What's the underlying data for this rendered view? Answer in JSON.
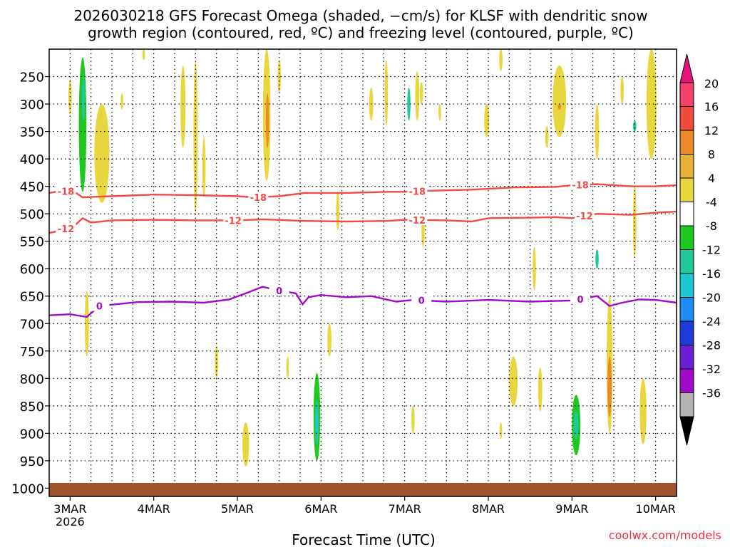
{
  "chart_data": {
    "type": "heatmap",
    "title_line1": "2026030218 GFS Forecast Omega (shaded, −cm/s) for KLSF with dendritic snow",
    "title_line2": "growth region (contoured, red, ºC) and freezing level (contoured, purple, ºC)",
    "xlabel": "Forecast Time (UTC)",
    "ylabel": "",
    "credit": "coolwx.com/models",
    "x_domain_days": [
      -0.25,
      7.25
    ],
    "x_ticks": [
      {
        "day": 0,
        "label": "3MAR",
        "sub": "2026"
      },
      {
        "day": 1,
        "label": "4MAR",
        "sub": ""
      },
      {
        "day": 2,
        "label": "5MAR",
        "sub": ""
      },
      {
        "day": 3,
        "label": "6MAR",
        "sub": ""
      },
      {
        "day": 4,
        "label": "7MAR",
        "sub": ""
      },
      {
        "day": 5,
        "label": "8MAR",
        "sub": ""
      },
      {
        "day": 6,
        "label": "9MAR",
        "sub": ""
      },
      {
        "day": 7,
        "label": "10MAR",
        "sub": ""
      }
    ],
    "y_domain_hpa": [
      200,
      1015
    ],
    "y_ticks": [
      250,
      300,
      350,
      400,
      450,
      500,
      550,
      600,
      650,
      700,
      750,
      800,
      850,
      900,
      950,
      1000
    ],
    "colorbar": {
      "labels": [
        "20",
        "16",
        "12",
        "8",
        "4",
        "-4",
        "-8",
        "-12",
        "-16",
        "-20",
        "-24",
        "-28",
        "-32",
        "-36"
      ],
      "colors": [
        "#f5406b",
        "#f04a3c",
        "#ec8a2a",
        "#e8b13a",
        "#e8d63e",
        "#ffffff",
        "#1ec81e",
        "#22c89a",
        "#1ec8d2",
        "#1e8cf0",
        "#1e3cdc",
        "#6a1ed6",
        "#a00ac8",
        "#b4b4b4"
      ],
      "top_arrow_color": "#e6147a",
      "bottom_arrow_color": "#000000"
    },
    "contours": [
      {
        "name": "-18C",
        "color": "#f04a46",
        "label": "-18",
        "points": [
          [
            -0.25,
            462
          ],
          [
            -0.1,
            458
          ],
          [
            0.05,
            460
          ],
          [
            0.15,
            470
          ],
          [
            0.5,
            468
          ],
          [
            1.0,
            465
          ],
          [
            1.5,
            466
          ],
          [
            2.0,
            468
          ],
          [
            2.2,
            470
          ],
          [
            2.5,
            468
          ],
          [
            2.8,
            462
          ],
          [
            3.3,
            462
          ],
          [
            3.8,
            460
          ],
          [
            4.0,
            460
          ],
          [
            4.3,
            458
          ],
          [
            4.8,
            456
          ],
          [
            5.3,
            452
          ],
          [
            5.8,
            451
          ],
          [
            6.0,
            448
          ],
          [
            6.3,
            446
          ],
          [
            6.7,
            450
          ],
          [
            7.0,
            450
          ],
          [
            7.25,
            448
          ]
        ],
        "labels_at": [
          -0.05,
          2.25,
          4.15,
          6.1
        ]
      },
      {
        "name": "-12C",
        "color": "#f04a46",
        "label": "-12",
        "points": [
          [
            -0.25,
            535
          ],
          [
            -0.1,
            530
          ],
          [
            0.05,
            522
          ],
          [
            0.15,
            508
          ],
          [
            0.25,
            516
          ],
          [
            0.5,
            512
          ],
          [
            1.0,
            511
          ],
          [
            1.5,
            512
          ],
          [
            2.0,
            512
          ],
          [
            2.3,
            510
          ],
          [
            2.8,
            513
          ],
          [
            3.3,
            514
          ],
          [
            3.8,
            513
          ],
          [
            4.0,
            511
          ],
          [
            4.5,
            512
          ],
          [
            4.8,
            514
          ],
          [
            5.0,
            508
          ],
          [
            5.5,
            507
          ],
          [
            5.8,
            506
          ],
          [
            6.0,
            508
          ],
          [
            6.3,
            500
          ],
          [
            6.7,
            502
          ],
          [
            7.0,
            498
          ],
          [
            7.25,
            496
          ]
        ],
        "labels_at": [
          -0.05,
          1.95,
          4.15,
          6.15
        ]
      },
      {
        "name": "freezing level 0C",
        "color": "#a00ac8",
        "label": "0",
        "points": [
          [
            -0.25,
            685
          ],
          [
            0.0,
            683
          ],
          [
            0.2,
            688
          ],
          [
            0.35,
            668
          ],
          [
            0.8,
            661
          ],
          [
            1.2,
            660
          ],
          [
            1.6,
            662
          ],
          [
            1.9,
            656
          ],
          [
            2.1,
            645
          ],
          [
            2.3,
            633
          ],
          [
            2.5,
            640
          ],
          [
            2.7,
            645
          ],
          [
            2.78,
            665
          ],
          [
            2.85,
            652
          ],
          [
            3.0,
            648
          ],
          [
            3.3,
            652
          ],
          [
            3.6,
            650
          ],
          [
            3.9,
            660
          ],
          [
            4.1,
            657
          ],
          [
            4.5,
            660
          ],
          [
            5.0,
            657
          ],
          [
            5.5,
            660
          ],
          [
            6.0,
            658
          ],
          [
            6.3,
            650
          ],
          [
            6.45,
            668
          ],
          [
            6.6,
            662
          ],
          [
            6.8,
            656
          ],
          [
            7.0,
            657
          ],
          [
            7.25,
            662
          ]
        ],
        "labels_at": [
          0.35,
          2.5,
          4.2,
          6.1
        ]
      }
    ],
    "shaded_regions": [
      {
        "day": 0.0,
        "p_top": 255,
        "p_bot": 320,
        "w": 0.04,
        "bin": "4"
      },
      {
        "day": 0.05,
        "p_top": 200,
        "p_bot": 700,
        "w": 0.06,
        "bin": "-4"
      },
      {
        "day": 0.15,
        "p_top": 215,
        "p_bot": 460,
        "w": 0.09,
        "bin": "-8"
      },
      {
        "day": 0.16,
        "p_top": 250,
        "p_bot": 330,
        "w": 0.04,
        "bin": "-12"
      },
      {
        "day": 0.38,
        "p_top": 300,
        "p_bot": 480,
        "w": 0.18,
        "bin": "4"
      },
      {
        "day": 0.62,
        "p_top": 280,
        "p_bot": 310,
        "w": 0.03,
        "bin": "4"
      },
      {
        "day": 0.2,
        "p_top": 640,
        "p_bot": 760,
        "w": 0.05,
        "bin": "4"
      },
      {
        "day": -0.05,
        "p_top": 820,
        "p_bot": 950,
        "w": 0.06,
        "bin": "-4"
      },
      {
        "day": 0.12,
        "p_top": 880,
        "p_bot": 920,
        "w": 0.03,
        "bin": "-4"
      },
      {
        "day": 0.88,
        "p_top": 200,
        "p_bot": 220,
        "w": 0.03,
        "bin": "4"
      },
      {
        "day": 1.35,
        "p_top": 230,
        "p_bot": 380,
        "w": 0.06,
        "bin": "4"
      },
      {
        "day": 1.2,
        "p_top": 330,
        "p_bot": 420,
        "w": 0.05,
        "bin": "-4"
      },
      {
        "day": 1.5,
        "p_top": 220,
        "p_bot": 500,
        "w": 0.05,
        "bin": "4"
      },
      {
        "day": 1.6,
        "p_top": 360,
        "p_bot": 470,
        "w": 0.04,
        "bin": "4"
      },
      {
        "day": 1.45,
        "p_top": 690,
        "p_bot": 760,
        "w": 0.04,
        "bin": "-4"
      },
      {
        "day": 1.75,
        "p_top": 740,
        "p_bot": 800,
        "w": 0.04,
        "bin": "4"
      },
      {
        "day": 2.05,
        "p_top": 230,
        "p_bot": 330,
        "w": 0.04,
        "bin": "-4"
      },
      {
        "day": 2.1,
        "p_top": 880,
        "p_bot": 960,
        "w": 0.08,
        "bin": "4"
      },
      {
        "day": 2.35,
        "p_top": 200,
        "p_bot": 440,
        "w": 0.09,
        "bin": "4"
      },
      {
        "day": 2.36,
        "p_top": 280,
        "p_bot": 380,
        "w": 0.04,
        "bin": "12"
      },
      {
        "day": 2.28,
        "p_top": 420,
        "p_bot": 620,
        "w": 0.09,
        "bin": "-4"
      },
      {
        "day": 2.5,
        "p_top": 220,
        "p_bot": 280,
        "w": 0.04,
        "bin": "4"
      },
      {
        "day": 2.6,
        "p_top": 760,
        "p_bot": 800,
        "w": 0.03,
        "bin": "4"
      },
      {
        "day": 2.75,
        "p_top": 780,
        "p_bot": 860,
        "w": 0.05,
        "bin": "-4"
      },
      {
        "day": 2.85,
        "p_top": 300,
        "p_bot": 340,
        "w": 0.04,
        "bin": "-4"
      },
      {
        "day": 2.95,
        "p_top": 790,
        "p_bot": 950,
        "w": 0.08,
        "bin": "-8"
      },
      {
        "day": 2.95,
        "p_top": 840,
        "p_bot": 920,
        "w": 0.05,
        "bin": "-12"
      },
      {
        "day": 2.95,
        "p_top": 860,
        "p_bot": 900,
        "w": 0.03,
        "bin": "-16"
      },
      {
        "day": 3.1,
        "p_top": 700,
        "p_bot": 760,
        "w": 0.05,
        "bin": "4"
      },
      {
        "day": 3.15,
        "p_top": 850,
        "p_bot": 950,
        "w": 0.05,
        "bin": "-4"
      },
      {
        "day": 3.2,
        "p_top": 460,
        "p_bot": 530,
        "w": 0.04,
        "bin": "4"
      },
      {
        "day": 3.6,
        "p_top": 270,
        "p_bot": 330,
        "w": 0.05,
        "bin": "4"
      },
      {
        "day": 3.78,
        "p_top": 220,
        "p_bot": 340,
        "w": 0.04,
        "bin": "4"
      },
      {
        "day": 4.05,
        "p_top": 265,
        "p_bot": 960,
        "w": 0.09,
        "bin": "-4"
      },
      {
        "day": 4.05,
        "p_top": 270,
        "p_bot": 330,
        "w": 0.04,
        "bin": "-12"
      },
      {
        "day": 4.15,
        "p_top": 240,
        "p_bot": 330,
        "w": 0.05,
        "bin": "4"
      },
      {
        "day": 4.2,
        "p_top": 260,
        "p_bot": 300,
        "w": 0.04,
        "bin": "4"
      },
      {
        "day": 4.42,
        "p_top": 300,
        "p_bot": 330,
        "w": 0.03,
        "bin": "4"
      },
      {
        "day": 4.22,
        "p_top": 500,
        "p_bot": 560,
        "w": 0.04,
        "bin": "4"
      },
      {
        "day": 4.25,
        "p_top": 820,
        "p_bot": 940,
        "w": 0.06,
        "bin": "-4"
      },
      {
        "day": 4.1,
        "p_top": 850,
        "p_bot": 900,
        "w": 0.04,
        "bin": "4"
      },
      {
        "day": 4.98,
        "p_top": 300,
        "p_bot": 360,
        "w": 0.06,
        "bin": "4"
      },
      {
        "day": 5.15,
        "p_top": 200,
        "p_bot": 240,
        "w": 0.04,
        "bin": "4"
      },
      {
        "day": 4.95,
        "p_top": 850,
        "p_bot": 920,
        "w": 0.05,
        "bin": "-4"
      },
      {
        "day": 5.05,
        "p_top": 820,
        "p_bot": 900,
        "w": 0.04,
        "bin": "-4"
      },
      {
        "day": 5.15,
        "p_top": 880,
        "p_bot": 910,
        "w": 0.03,
        "bin": "4"
      },
      {
        "day": 5.3,
        "p_top": 760,
        "p_bot": 850,
        "w": 0.1,
        "bin": "4"
      },
      {
        "day": 5.55,
        "p_top": 560,
        "p_bot": 640,
        "w": 0.04,
        "bin": "4"
      },
      {
        "day": 5.62,
        "p_top": 780,
        "p_bot": 860,
        "w": 0.05,
        "bin": "4"
      },
      {
        "day": 5.7,
        "p_top": 340,
        "p_bot": 380,
        "w": 0.04,
        "bin": "4"
      },
      {
        "day": 5.85,
        "p_top": 230,
        "p_bot": 360,
        "w": 0.16,
        "bin": "4"
      },
      {
        "day": 5.85,
        "p_top": 300,
        "p_bot": 310,
        "w": 0.04,
        "bin": "12"
      },
      {
        "day": 5.9,
        "p_top": 480,
        "p_bot": 510,
        "w": 0.04,
        "bin": "-4"
      },
      {
        "day": 6.05,
        "p_top": 780,
        "p_bot": 960,
        "w": 0.2,
        "bin": "-4"
      },
      {
        "day": 6.05,
        "p_top": 830,
        "p_bot": 940,
        "w": 0.1,
        "bin": "-8"
      },
      {
        "day": 6.05,
        "p_top": 860,
        "p_bot": 910,
        "w": 0.06,
        "bin": "-12"
      },
      {
        "day": 6.1,
        "p_top": 330,
        "p_bot": 420,
        "w": 0.05,
        "bin": "-4"
      },
      {
        "day": 6.3,
        "p_top": 300,
        "p_bot": 400,
        "w": 0.05,
        "bin": "4"
      },
      {
        "day": 6.3,
        "p_top": 550,
        "p_bot": 610,
        "w": 0.06,
        "bin": "-4"
      },
      {
        "day": 6.3,
        "p_top": 565,
        "p_bot": 600,
        "w": 0.04,
        "bin": "-12"
      },
      {
        "day": 6.45,
        "p_top": 650,
        "p_bot": 900,
        "w": 0.07,
        "bin": "4"
      },
      {
        "day": 6.45,
        "p_top": 760,
        "p_bot": 870,
        "w": 0.05,
        "bin": "12"
      },
      {
        "day": 6.6,
        "p_top": 250,
        "p_bot": 300,
        "w": 0.04,
        "bin": "4"
      },
      {
        "day": 6.75,
        "p_top": 260,
        "p_bot": 420,
        "w": 0.08,
        "bin": "-4"
      },
      {
        "day": 6.75,
        "p_top": 330,
        "p_bot": 350,
        "w": 0.04,
        "bin": "-12"
      },
      {
        "day": 6.75,
        "p_top": 450,
        "p_bot": 580,
        "w": 0.04,
        "bin": "4"
      },
      {
        "day": 6.85,
        "p_top": 800,
        "p_bot": 920,
        "w": 0.08,
        "bin": "4"
      },
      {
        "day": 6.95,
        "p_top": 200,
        "p_bot": 400,
        "w": 0.12,
        "bin": "4"
      },
      {
        "day": 7.1,
        "p_top": 830,
        "p_bot": 950,
        "w": 0.07,
        "bin": "-4"
      }
    ]
  }
}
